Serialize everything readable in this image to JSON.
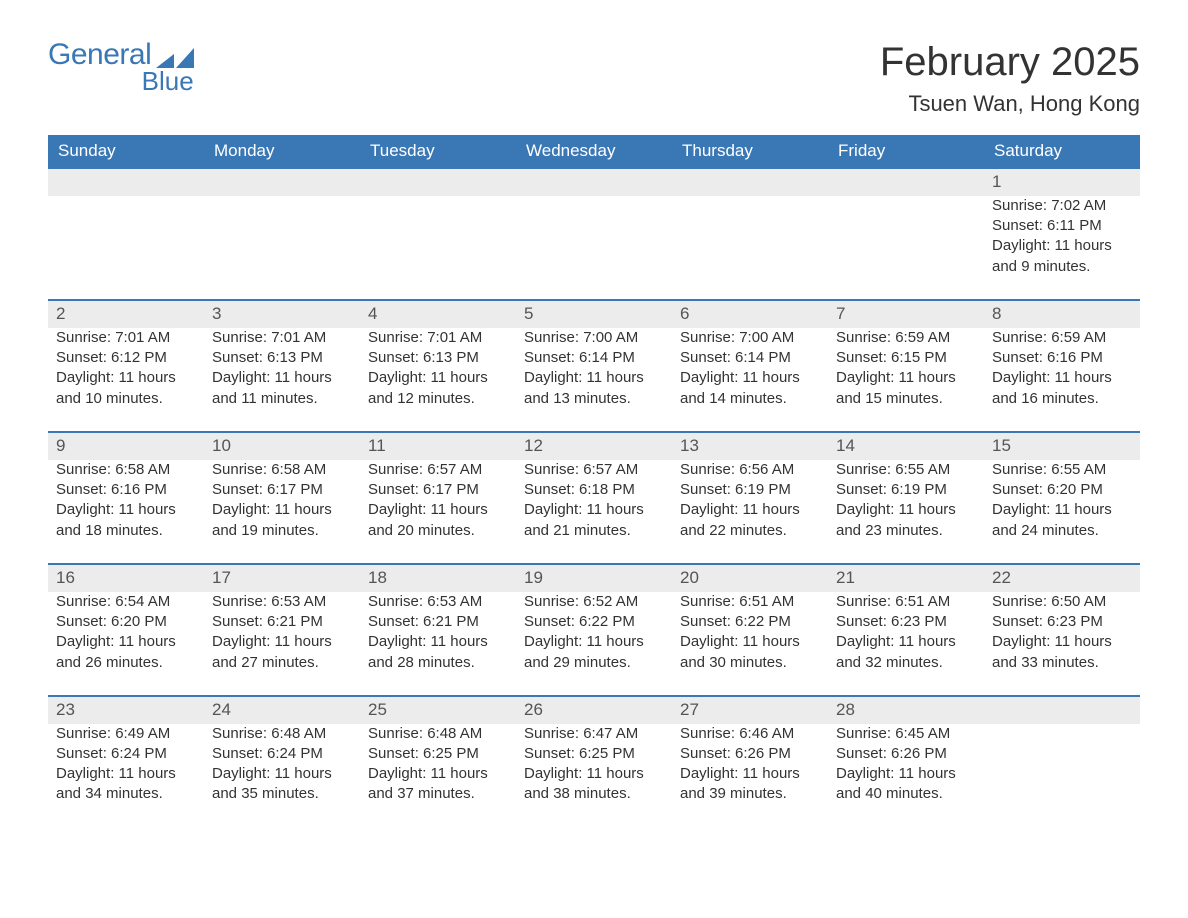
{
  "logo": {
    "word1": "General",
    "word2": "Blue",
    "brand_color": "#3a77b5"
  },
  "title": "February 2025",
  "location": "Tsuen Wan, Hong Kong",
  "colors": {
    "header_bg": "#3a77b5",
    "header_text": "#ffffff",
    "daynum_bg": "#ececec",
    "border_top": "#3a77b5",
    "body_text": "#333333"
  },
  "day_headers": [
    "Sunday",
    "Monday",
    "Tuesday",
    "Wednesday",
    "Thursday",
    "Friday",
    "Saturday"
  ],
  "weeks": [
    {
      "days": [
        null,
        null,
        null,
        null,
        null,
        null,
        {
          "n": "1",
          "sunrise": "Sunrise: 7:02 AM",
          "sunset": "Sunset: 6:11 PM",
          "daylight1": "Daylight: 11 hours",
          "daylight2": "and 9 minutes."
        }
      ]
    },
    {
      "days": [
        {
          "n": "2",
          "sunrise": "Sunrise: 7:01 AM",
          "sunset": "Sunset: 6:12 PM",
          "daylight1": "Daylight: 11 hours",
          "daylight2": "and 10 minutes."
        },
        {
          "n": "3",
          "sunrise": "Sunrise: 7:01 AM",
          "sunset": "Sunset: 6:13 PM",
          "daylight1": "Daylight: 11 hours",
          "daylight2": "and 11 minutes."
        },
        {
          "n": "4",
          "sunrise": "Sunrise: 7:01 AM",
          "sunset": "Sunset: 6:13 PM",
          "daylight1": "Daylight: 11 hours",
          "daylight2": "and 12 minutes."
        },
        {
          "n": "5",
          "sunrise": "Sunrise: 7:00 AM",
          "sunset": "Sunset: 6:14 PM",
          "daylight1": "Daylight: 11 hours",
          "daylight2": "and 13 minutes."
        },
        {
          "n": "6",
          "sunrise": "Sunrise: 7:00 AM",
          "sunset": "Sunset: 6:14 PM",
          "daylight1": "Daylight: 11 hours",
          "daylight2": "and 14 minutes."
        },
        {
          "n": "7",
          "sunrise": "Sunrise: 6:59 AM",
          "sunset": "Sunset: 6:15 PM",
          "daylight1": "Daylight: 11 hours",
          "daylight2": "and 15 minutes."
        },
        {
          "n": "8",
          "sunrise": "Sunrise: 6:59 AM",
          "sunset": "Sunset: 6:16 PM",
          "daylight1": "Daylight: 11 hours",
          "daylight2": "and 16 minutes."
        }
      ]
    },
    {
      "days": [
        {
          "n": "9",
          "sunrise": "Sunrise: 6:58 AM",
          "sunset": "Sunset: 6:16 PM",
          "daylight1": "Daylight: 11 hours",
          "daylight2": "and 18 minutes."
        },
        {
          "n": "10",
          "sunrise": "Sunrise: 6:58 AM",
          "sunset": "Sunset: 6:17 PM",
          "daylight1": "Daylight: 11 hours",
          "daylight2": "and 19 minutes."
        },
        {
          "n": "11",
          "sunrise": "Sunrise: 6:57 AM",
          "sunset": "Sunset: 6:17 PM",
          "daylight1": "Daylight: 11 hours",
          "daylight2": "and 20 minutes."
        },
        {
          "n": "12",
          "sunrise": "Sunrise: 6:57 AM",
          "sunset": "Sunset: 6:18 PM",
          "daylight1": "Daylight: 11 hours",
          "daylight2": "and 21 minutes."
        },
        {
          "n": "13",
          "sunrise": "Sunrise: 6:56 AM",
          "sunset": "Sunset: 6:19 PM",
          "daylight1": "Daylight: 11 hours",
          "daylight2": "and 22 minutes."
        },
        {
          "n": "14",
          "sunrise": "Sunrise: 6:55 AM",
          "sunset": "Sunset: 6:19 PM",
          "daylight1": "Daylight: 11 hours",
          "daylight2": "and 23 minutes."
        },
        {
          "n": "15",
          "sunrise": "Sunrise: 6:55 AM",
          "sunset": "Sunset: 6:20 PM",
          "daylight1": "Daylight: 11 hours",
          "daylight2": "and 24 minutes."
        }
      ]
    },
    {
      "days": [
        {
          "n": "16",
          "sunrise": "Sunrise: 6:54 AM",
          "sunset": "Sunset: 6:20 PM",
          "daylight1": "Daylight: 11 hours",
          "daylight2": "and 26 minutes."
        },
        {
          "n": "17",
          "sunrise": "Sunrise: 6:53 AM",
          "sunset": "Sunset: 6:21 PM",
          "daylight1": "Daylight: 11 hours",
          "daylight2": "and 27 minutes."
        },
        {
          "n": "18",
          "sunrise": "Sunrise: 6:53 AM",
          "sunset": "Sunset: 6:21 PM",
          "daylight1": "Daylight: 11 hours",
          "daylight2": "and 28 minutes."
        },
        {
          "n": "19",
          "sunrise": "Sunrise: 6:52 AM",
          "sunset": "Sunset: 6:22 PM",
          "daylight1": "Daylight: 11 hours",
          "daylight2": "and 29 minutes."
        },
        {
          "n": "20",
          "sunrise": "Sunrise: 6:51 AM",
          "sunset": "Sunset: 6:22 PM",
          "daylight1": "Daylight: 11 hours",
          "daylight2": "and 30 minutes."
        },
        {
          "n": "21",
          "sunrise": "Sunrise: 6:51 AM",
          "sunset": "Sunset: 6:23 PM",
          "daylight1": "Daylight: 11 hours",
          "daylight2": "and 32 minutes."
        },
        {
          "n": "22",
          "sunrise": "Sunrise: 6:50 AM",
          "sunset": "Sunset: 6:23 PM",
          "daylight1": "Daylight: 11 hours",
          "daylight2": "and 33 minutes."
        }
      ]
    },
    {
      "days": [
        {
          "n": "23",
          "sunrise": "Sunrise: 6:49 AM",
          "sunset": "Sunset: 6:24 PM",
          "daylight1": "Daylight: 11 hours",
          "daylight2": "and 34 minutes."
        },
        {
          "n": "24",
          "sunrise": "Sunrise: 6:48 AM",
          "sunset": "Sunset: 6:24 PM",
          "daylight1": "Daylight: 11 hours",
          "daylight2": "and 35 minutes."
        },
        {
          "n": "25",
          "sunrise": "Sunrise: 6:48 AM",
          "sunset": "Sunset: 6:25 PM",
          "daylight1": "Daylight: 11 hours",
          "daylight2": "and 37 minutes."
        },
        {
          "n": "26",
          "sunrise": "Sunrise: 6:47 AM",
          "sunset": "Sunset: 6:25 PM",
          "daylight1": "Daylight: 11 hours",
          "daylight2": "and 38 minutes."
        },
        {
          "n": "27",
          "sunrise": "Sunrise: 6:46 AM",
          "sunset": "Sunset: 6:26 PM",
          "daylight1": "Daylight: 11 hours",
          "daylight2": "and 39 minutes."
        },
        {
          "n": "28",
          "sunrise": "Sunrise: 6:45 AM",
          "sunset": "Sunset: 6:26 PM",
          "daylight1": "Daylight: 11 hours",
          "daylight2": "and 40 minutes."
        },
        null
      ]
    }
  ]
}
